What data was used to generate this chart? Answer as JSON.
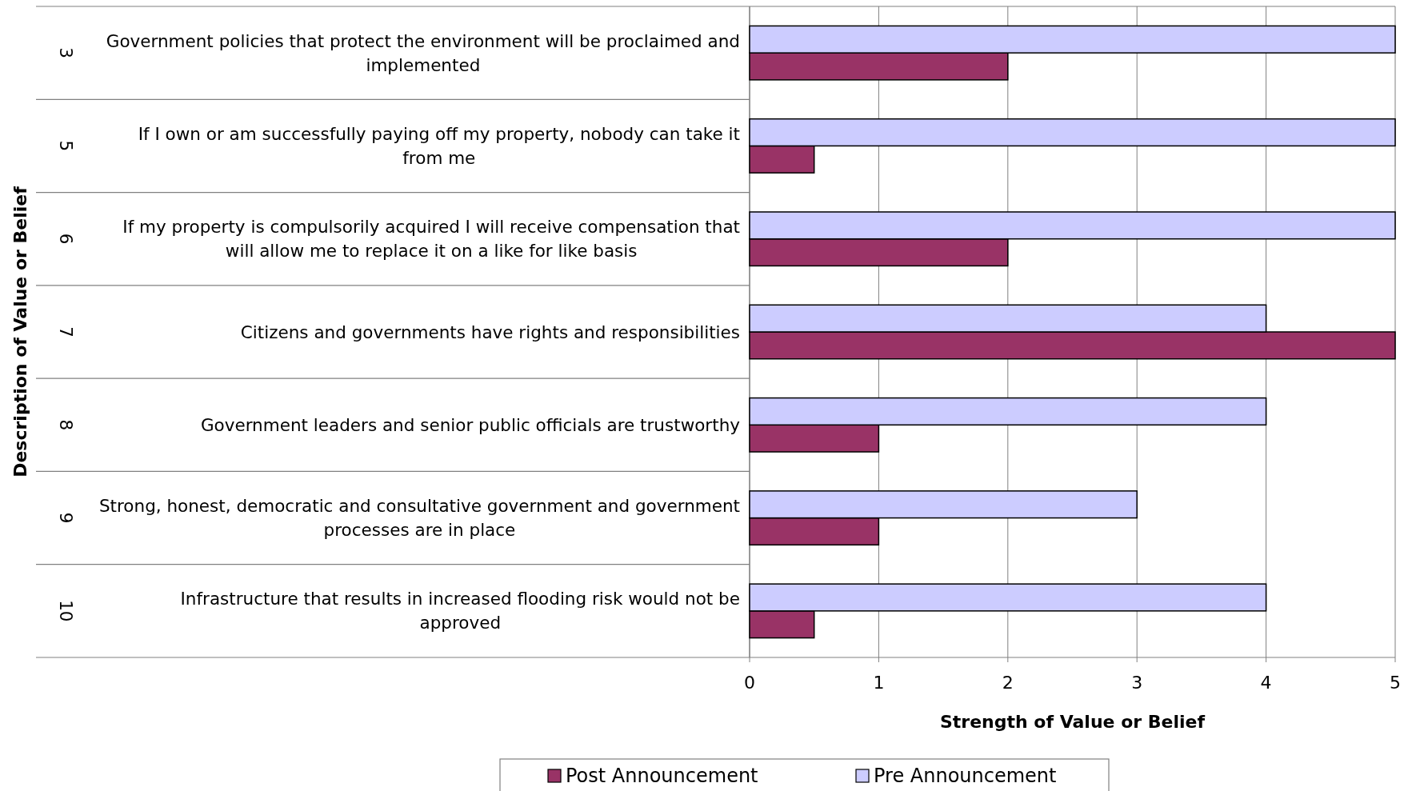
{
  "chart_data": {
    "type": "bar",
    "orientation": "horizontal",
    "ylabel": "Description of Value or Belief",
    "xlabel": "Strength of Value or Belief",
    "categories": [
      "Government policies that protect the environment will be proclaimed and implemented",
      "If I own or am successfully paying off my property, nobody can take it from me",
      "If my property is compulsorily acquired I will receive compensation that will allow me to replace it on a like for like basis",
      "Citizens and governments have rights and responsibilities",
      "Government leaders and senior public officials are trustworthy",
      "Strong, honest, democratic and consultative government and government processes are in place",
      "Infrastructure that results in increased flooding risk would not be approved"
    ],
    "series": [
      {
        "name": "Post Announcement",
        "color": "#993366",
        "values": [
          2,
          0.5,
          2,
          5,
          1,
          1,
          0.5
        ]
      },
      {
        "name": "Pre Announcement",
        "color": "#ccccff",
        "values": [
          5,
          5,
          5,
          4,
          4,
          3,
          4
        ]
      }
    ],
    "annotations": [
      "3",
      "5",
      "6",
      "7",
      "8",
      "9",
      "10"
    ],
    "xlim": [
      0,
      5
    ],
    "xticks": [
      0,
      1,
      2,
      3,
      4,
      5
    ],
    "grid": "x",
    "legend": "bottom"
  }
}
